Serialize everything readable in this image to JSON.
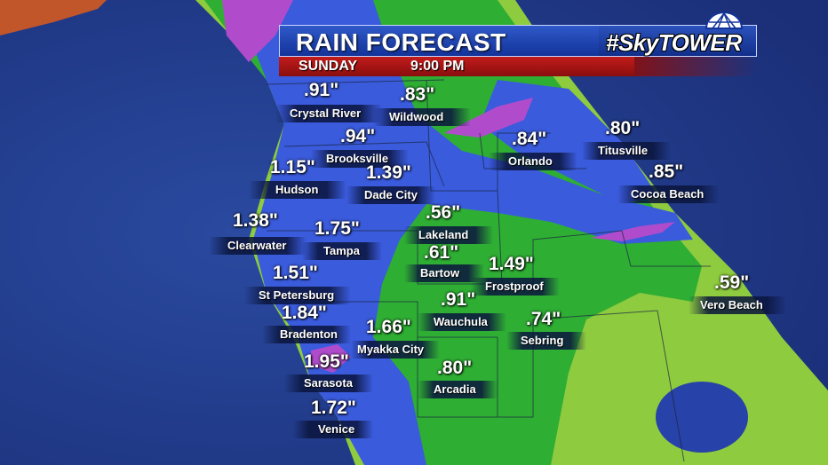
{
  "header": {
    "title": "RAIN FORECAST",
    "brand": "#SkyTOWER",
    "day": "SUNDAY",
    "time": "9:00 PM"
  },
  "colors": {
    "ocean": "#1f3a8a",
    "light_rain": "#2ea82e",
    "moderate_rain": "#3455d8",
    "heavy_rain": "#b04ccb",
    "trace": "#9fd24a",
    "title_bar": "#1e45b8",
    "subtitle_bar": "#b81616"
  },
  "stations": [
    {
      "name": "Crystal River",
      "amount": ".91\""
    },
    {
      "name": "Wildwood",
      "amount": ".83\""
    },
    {
      "name": "Brooksville",
      "amount": ".94\""
    },
    {
      "name": "Orlando",
      "amount": ".84\""
    },
    {
      "name": "Titusville",
      "amount": ".80\""
    },
    {
      "name": "Hudson",
      "amount": "1.15\""
    },
    {
      "name": "Dade City",
      "amount": "1.39\""
    },
    {
      "name": "Cocoa Beach",
      "amount": ".85\""
    },
    {
      "name": "Lakeland",
      "amount": ".56\""
    },
    {
      "name": "Clearwater",
      "amount": "1.38\""
    },
    {
      "name": "Tampa",
      "amount": "1.75\""
    },
    {
      "name": "Bartow",
      "amount": ".61\""
    },
    {
      "name": "Frostproof",
      "amount": "1.49\""
    },
    {
      "name": "St Petersburg",
      "amount": "1.51\""
    },
    {
      "name": "Vero Beach",
      "amount": ".59\""
    },
    {
      "name": "Bradenton",
      "amount": "1.84\""
    },
    {
      "name": "Wauchula",
      "amount": ".91\""
    },
    {
      "name": "Myakka City",
      "amount": "1.66\""
    },
    {
      "name": "Sebring",
      "amount": ".74\""
    },
    {
      "name": "Sarasota",
      "amount": "1.95\""
    },
    {
      "name": "Arcadia",
      "amount": ".80\""
    },
    {
      "name": "Venice",
      "amount": "1.72\""
    }
  ]
}
